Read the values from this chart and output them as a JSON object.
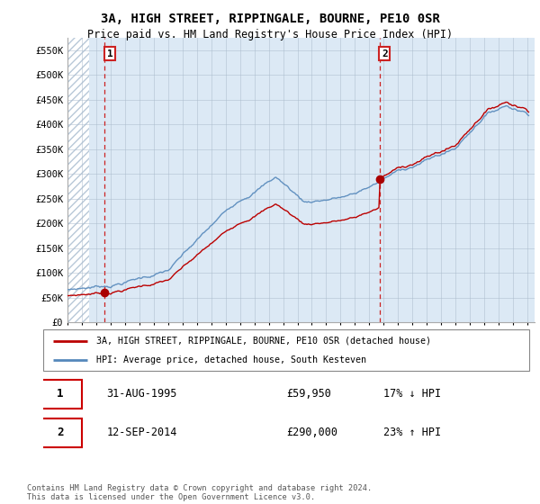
{
  "title": "3A, HIGH STREET, RIPPINGALE, BOURNE, PE10 0SR",
  "subtitle": "Price paid vs. HM Land Registry's House Price Index (HPI)",
  "ylim": [
    0,
    575000
  ],
  "ytick_vals": [
    0,
    50000,
    100000,
    150000,
    200000,
    250000,
    300000,
    350000,
    400000,
    450000,
    500000,
    550000
  ],
  "ytick_labels": [
    "£0",
    "£50K",
    "£100K",
    "£150K",
    "£200K",
    "£250K",
    "£300K",
    "£350K",
    "£400K",
    "£450K",
    "£500K",
    "£550K"
  ],
  "xlim_start": 1993.0,
  "xlim_end": 2025.5,
  "sale1_date": 1995.58,
  "sale1_price": 59950,
  "sale1_label": "1",
  "sale2_date": 2014.7,
  "sale2_price": 290000,
  "sale2_label": "2",
  "legend_line1": "3A, HIGH STREET, RIPPINGALE, BOURNE, PE10 0SR (detached house)",
  "legend_line2": "HPI: Average price, detached house, South Kesteven",
  "table_row1": [
    "1",
    "31-AUG-1995",
    "£59,950",
    "17% ↓ HPI"
  ],
  "table_row2": [
    "2",
    "12-SEP-2014",
    "£290,000",
    "23% ↑ HPI"
  ],
  "footer": "Contains HM Land Registry data © Crown copyright and database right 2024.\nThis data is licensed under the Open Government Licence v3.0.",
  "hpi_color": "#5588bb",
  "property_color": "#bb0000",
  "sale_marker_color": "#aa0000",
  "chart_bg_color": "#dce9f5",
  "hatch_color": "#b8c8d8",
  "grid_color": "#aabbcc",
  "vline_color": "#cc2222",
  "hatch_end_year": 1994.5
}
